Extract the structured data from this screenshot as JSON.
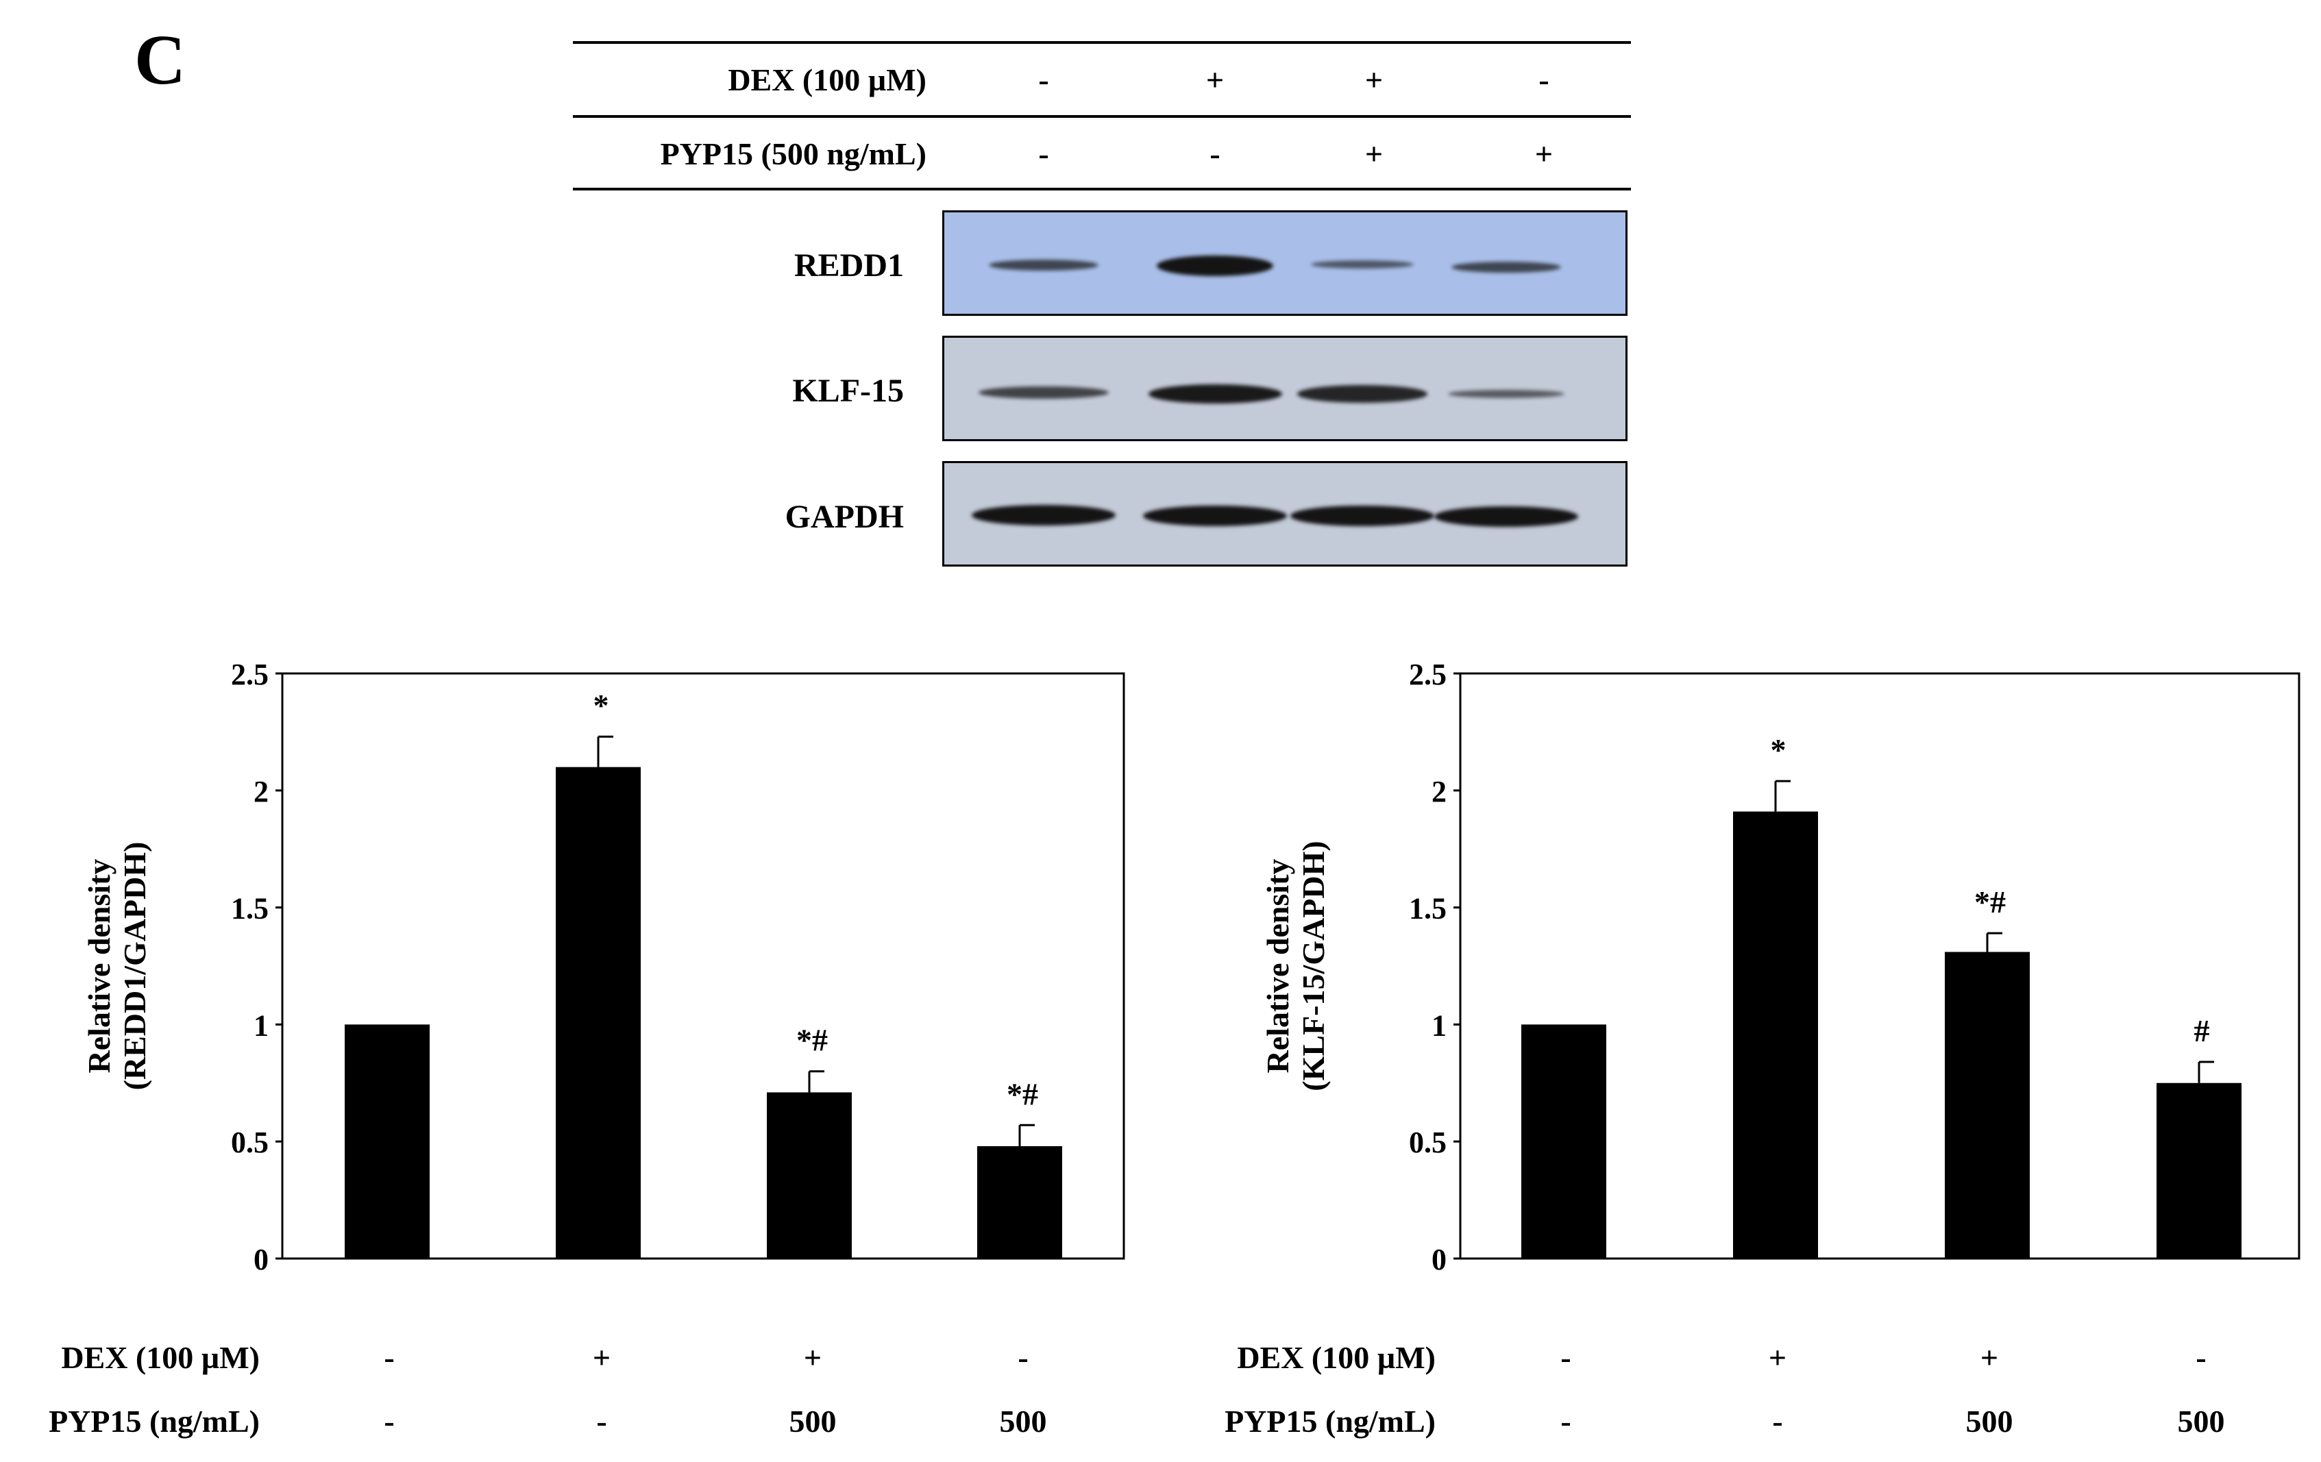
{
  "panel_label": "C",
  "table": {
    "rows": [
      {
        "label": "DEX (100 µM)",
        "values": [
          "-",
          "+",
          "+",
          "-"
        ]
      },
      {
        "label": "PYP15 (500 ng/mL)",
        "values": [
          "-",
          "-",
          "+",
          "+"
        ]
      }
    ]
  },
  "blots": [
    {
      "label": "REDD1",
      "background": "#a9bfe9",
      "band_intensity": [
        0.55,
        1.0,
        0.4,
        0.55
      ]
    },
    {
      "label": "KLF-15",
      "background": "#c3cad8",
      "band_intensity": [
        0.6,
        0.95,
        0.85,
        0.4
      ]
    },
    {
      "label": "GAPDH",
      "background": "#c3cad8",
      "band_intensity": [
        1.0,
        1.0,
        1.0,
        1.0
      ]
    }
  ],
  "bottom_conditions": [
    {
      "label": "DEX (100 µM)",
      "values": [
        "-",
        "+",
        "+",
        "-"
      ]
    },
    {
      "label": "PYP15 (ng/mL)",
      "values": [
        "-",
        "-",
        "500",
        "500"
      ]
    }
  ],
  "chart_data": [
    {
      "type": "bar",
      "categories": [
        "1",
        "2",
        "3",
        "4"
      ],
      "values": [
        1.0,
        2.1,
        0.71,
        0.48
      ],
      "errors": [
        0.0,
        0.13,
        0.09,
        0.09
      ],
      "annotations": [
        "",
        "*",
        "*#",
        "*#"
      ],
      "ylabel_lines": [
        "Relative density",
        "(REDD1/GAPDH)"
      ],
      "ylim": [
        0,
        2.5
      ],
      "yticks": [
        "0",
        "0.5",
        "1",
        "1.5",
        "2",
        "2.5"
      ],
      "bar_color": "#000000"
    },
    {
      "type": "bar",
      "categories": [
        "1",
        "2",
        "3",
        "4"
      ],
      "values": [
        1.0,
        1.91,
        1.31,
        0.75
      ],
      "errors": [
        0.0,
        0.13,
        0.08,
        0.09
      ],
      "annotations": [
        "",
        "*",
        "*#",
        "#"
      ],
      "ylabel_lines": [
        "Relative density",
        "(KLF-15/GAPDH)"
      ],
      "ylim": [
        0,
        2.5
      ],
      "yticks": [
        "0",
        "0.5",
        "1",
        "1.5",
        "2",
        "2.5"
      ],
      "bar_color": "#000000"
    }
  ]
}
